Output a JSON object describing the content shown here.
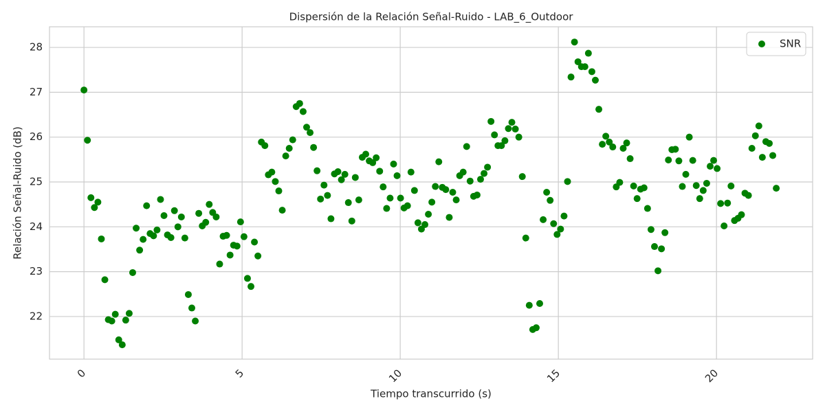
{
  "chart_data": {
    "type": "scatter",
    "title": "Dispersión de la Relación Señal-Ruido - LAB_6_Outdoor",
    "x_label": "Tiempo transcurrido (s)",
    "y_label": "Relación Señal-Ruido (dB)",
    "xlim": [
      -1.09,
      23.04
    ],
    "ylim": [
      21.05,
      28.46
    ],
    "xticks": [
      0,
      5,
      10,
      15,
      20
    ],
    "yticks": [
      22,
      23,
      24,
      25,
      26,
      27,
      28
    ],
    "grid": true,
    "legend": "upper right",
    "series": [
      {
        "name": "SNR",
        "color": "#008000",
        "x": [
          0,
          0.11,
          0.22,
          0.33,
          0.44,
          0.55,
          0.66,
          0.77,
          0.88,
          0.99,
          1.1,
          1.21,
          1.32,
          1.43,
          1.54,
          1.65,
          1.76,
          1.87,
          1.98,
          2.09,
          2.2,
          2.31,
          2.42,
          2.53,
          2.64,
          2.75,
          2.86,
          2.97,
          3.08,
          3.19,
          3.3,
          3.41,
          3.52,
          3.63,
          3.74,
          3.85,
          3.96,
          4.07,
          4.18,
          4.29,
          4.4,
          4.51,
          4.62,
          4.73,
          4.84,
          4.95,
          5.06,
          5.17,
          5.28,
          5.39,
          5.5,
          5.61,
          5.72,
          5.83,
          5.94,
          6.05,
          6.16,
          6.27,
          6.38,
          6.49,
          6.6,
          6.71,
          6.82,
          6.93,
          7.04,
          7.15,
          7.26,
          7.37,
          7.48,
          7.59,
          7.7,
          7.81,
          7.92,
          8.03,
          8.14,
          8.25,
          8.36,
          8.47,
          8.58,
          8.69,
          8.8,
          8.91,
          9.02,
          9.13,
          9.24,
          9.35,
          9.46,
          9.57,
          9.68,
          9.79,
          9.9,
          10.01,
          10.12,
          10.23,
          10.34,
          10.45,
          10.56,
          10.67,
          10.78,
          10.89,
          11,
          11.11,
          11.22,
          11.33,
          11.44,
          11.55,
          11.66,
          11.77,
          11.88,
          11.99,
          12.1,
          12.21,
          12.32,
          12.43,
          12.54,
          12.65,
          12.76,
          12.87,
          12.98,
          13.09,
          13.2,
          13.31,
          13.42,
          13.53,
          13.64,
          13.75,
          13.86,
          13.97,
          14.08,
          14.19,
          14.3,
          14.41,
          14.52,
          14.63,
          14.74,
          14.85,
          14.96,
          15.07,
          15.18,
          15.29,
          15.4,
          15.51,
          15.62,
          15.73,
          15.84,
          15.95,
          16.06,
          16.17,
          16.28,
          16.39,
          16.5,
          16.61,
          16.72,
          16.83,
          16.94,
          17.05,
          17.16,
          17.27,
          17.38,
          17.49,
          17.6,
          17.71,
          17.82,
          17.93,
          18.04,
          18.15,
          18.26,
          18.37,
          18.48,
          18.59,
          18.7,
          18.81,
          18.92,
          19.03,
          19.14,
          19.25,
          19.36,
          19.47,
          19.58,
          19.69,
          19.8,
          19.91,
          20.02,
          20.13,
          20.24,
          20.35,
          20.46,
          20.57,
          20.68,
          20.79,
          20.9,
          21.01,
          21.12,
          21.23,
          21.34,
          21.45,
          21.56,
          21.67,
          21.78,
          21.89
        ],
        "values": [
          27.05,
          25.93,
          24.65,
          24.43,
          24.55,
          23.73,
          22.82,
          21.93,
          21.9,
          22.05,
          21.48,
          21.37,
          21.92,
          22.07,
          22.98,
          23.97,
          23.48,
          23.72,
          24.47,
          23.85,
          23.8,
          23.93,
          24.61,
          24.25,
          23.82,
          23.76,
          24.36,
          24.0,
          24.22,
          23.75,
          22.49,
          22.19,
          21.9,
          24.3,
          24.02,
          24.1,
          24.5,
          24.32,
          24.22,
          23.17,
          23.79,
          23.81,
          23.37,
          23.59,
          23.57,
          24.11,
          23.78,
          22.85,
          22.67,
          23.66,
          23.35,
          25.89,
          25.81,
          25.16,
          25.22,
          25.01,
          24.8,
          24.37,
          25.58,
          25.75,
          25.94,
          26.68,
          26.75,
          26.57,
          26.22,
          26.1,
          25.77,
          25.25,
          24.62,
          24.93,
          24.7,
          24.18,
          25.18,
          25.23,
          25.05,
          25.17,
          24.54,
          24.13,
          25.1,
          24.6,
          25.55,
          25.62,
          25.47,
          25.43,
          25.54,
          25.24,
          24.89,
          24.41,
          24.64,
          25.4,
          25.14,
          24.64,
          24.42,
          24.47,
          25.22,
          24.81,
          24.09,
          23.95,
          24.05,
          24.28,
          24.55,
          24.9,
          25.45,
          24.88,
          24.83,
          24.21,
          24.77,
          24.6,
          25.14,
          25.22,
          25.79,
          25.02,
          24.68,
          24.71,
          25.06,
          25.19,
          25.33,
          26.35,
          26.05,
          25.81,
          25.81,
          25.92,
          26.19,
          26.33,
          26.18,
          26.0,
          25.12,
          23.75,
          22.25,
          21.71,
          21.75,
          22.29,
          24.16,
          24.77,
          24.59,
          24.07,
          23.83,
          23.95,
          24.24,
          25.01,
          27.34,
          28.12,
          27.68,
          27.57,
          27.57,
          27.87,
          27.46,
          27.27,
          26.62,
          25.84,
          26.02,
          25.89,
          25.78,
          24.89,
          24.99,
          25.75,
          25.87,
          25.52,
          24.91,
          24.63,
          24.84,
          24.87,
          24.41,
          23.94,
          23.56,
          23.02,
          23.51,
          23.87,
          25.49,
          25.72,
          25.73,
          25.47,
          24.9,
          25.17,
          26.0,
          25.48,
          24.92,
          24.63,
          24.81,
          24.97,
          25.35,
          25.48,
          25.3,
          24.52,
          24.02,
          24.53,
          24.91,
          24.14,
          24.19,
          24.27,
          24.75,
          24.7,
          25.75,
          26.03,
          26.25,
          25.55,
          25.9,
          25.86,
          25.59,
          24.86
        ]
      }
    ]
  }
}
